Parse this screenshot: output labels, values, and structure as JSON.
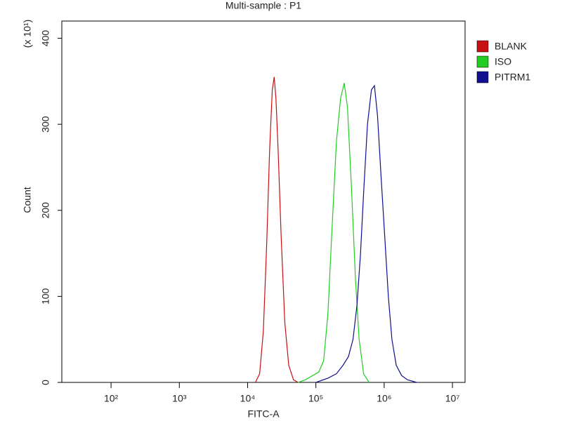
{
  "chart_data": {
    "type": "line",
    "title": "Multi-sample : P1",
    "x_label": "FITC-A",
    "y_label": "Count",
    "y_scale_note": "(x 10¹)",
    "xscale": "log",
    "xlim": [
      19,
      15300000
    ],
    "ylim": [
      0,
      420
    ],
    "xticks": [
      {
        "value": 100,
        "label": "10²"
      },
      {
        "value": 1000,
        "label": "10³"
      },
      {
        "value": 10000,
        "label": "10⁴"
      },
      {
        "value": 100000,
        "label": "10⁵"
      },
      {
        "value": 1000000,
        "label": "10⁶"
      },
      {
        "value": 10000000,
        "label": "10⁷"
      }
    ],
    "yticks": [
      0,
      100,
      200,
      300,
      400
    ],
    "legend": "right",
    "series": [
      {
        "name": "BLANK",
        "color": "#c81010",
        "x": [
          13000,
          15000,
          17000,
          19000,
          21000,
          23000,
          24500,
          26000,
          28000,
          31000,
          35000,
          40000,
          47000,
          55000
        ],
        "values": [
          0,
          10,
          60,
          160,
          270,
          340,
          355,
          330,
          270,
          170,
          70,
          20,
          3,
          0
        ]
      },
      {
        "name": "ISO",
        "color": "#22cc22",
        "x": [
          55000,
          70000,
          90000,
          110000,
          130000,
          150000,
          170000,
          200000,
          230000,
          260000,
          290000,
          330000,
          380000,
          430000,
          500000,
          600000
        ],
        "values": [
          0,
          3,
          8,
          12,
          25,
          80,
          170,
          280,
          330,
          348,
          320,
          230,
          120,
          50,
          10,
          0
        ]
      },
      {
        "name": "PITRM1",
        "color": "#101090",
        "x": [
          100000,
          150000,
          200000,
          250000,
          300000,
          350000,
          400000,
          450000,
          500000,
          570000,
          650000,
          720000,
          800000,
          900000,
          1000000,
          1150000,
          1300000,
          1500000,
          1800000,
          2200000,
          3000000
        ],
        "values": [
          0,
          5,
          10,
          20,
          30,
          50,
          90,
          150,
          220,
          300,
          340,
          345,
          310,
          240,
          180,
          100,
          50,
          20,
          8,
          3,
          0
        ]
      }
    ]
  }
}
